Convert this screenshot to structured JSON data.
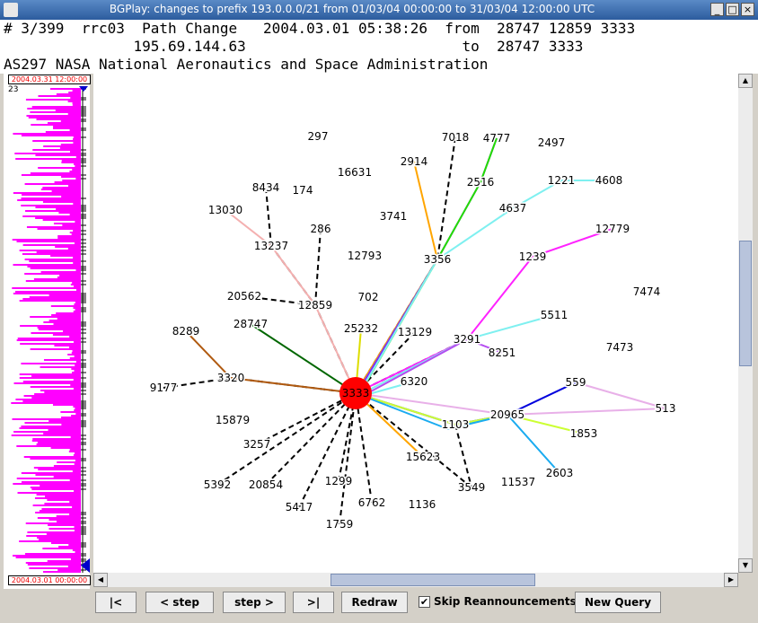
{
  "window": {
    "title": "BGPlay: changes to prefix 193.0.0.0/21 from 01/03/04 00:00:00 to 31/03/04 12:00:00 UTC",
    "minimize": "_",
    "maximize": "□",
    "close": "×"
  },
  "info": {
    "line1": "# 3/399  rrc03  Path Change   2004.03.01 05:38:26  from  28747 12859 3333",
    "line2": "               195.69.144.63                         to  28747 3333",
    "line3": "AS297 NASA National Aeronautics and Space Administration"
  },
  "timeline": {
    "top_date": "2004.03.31  12:00:00",
    "bottom_date": "2004.03.01  00:00:00",
    "count": "23",
    "event_color": "#ff00ff"
  },
  "graph": {
    "center_node": "3333",
    "center_color": "#ff0000",
    "nodes": [
      {
        "label": "297"
      },
      {
        "label": "7018"
      },
      {
        "label": "4777"
      },
      {
        "label": "2497"
      },
      {
        "label": "16631"
      },
      {
        "label": "2914"
      },
      {
        "label": "2516"
      },
      {
        "label": "1221"
      },
      {
        "label": "4608"
      },
      {
        "label": "8434"
      },
      {
        "label": "174"
      },
      {
        "label": "13030"
      },
      {
        "label": "3741"
      },
      {
        "label": "4637"
      },
      {
        "label": "286"
      },
      {
        "label": "12779"
      },
      {
        "label": "13237"
      },
      {
        "label": "12793"
      },
      {
        "label": "3356"
      },
      {
        "label": "1239"
      },
      {
        "label": "7474"
      },
      {
        "label": "20562"
      },
      {
        "label": "702"
      },
      {
        "label": "12859"
      },
      {
        "label": "5511"
      },
      {
        "label": "28747"
      },
      {
        "label": "25232"
      },
      {
        "label": "8289"
      },
      {
        "label": "13129"
      },
      {
        "label": "3291"
      },
      {
        "label": "7473"
      },
      {
        "label": "8251"
      },
      {
        "label": "3320"
      },
      {
        "label": "9177"
      },
      {
        "label": "6320"
      },
      {
        "label": "559"
      },
      {
        "label": "513"
      },
      {
        "label": "20965"
      },
      {
        "label": "15879"
      },
      {
        "label": "1103"
      },
      {
        "label": "1853"
      },
      {
        "label": "3257"
      },
      {
        "label": "15623"
      },
      {
        "label": "2603"
      },
      {
        "label": "5392"
      },
      {
        "label": "20854"
      },
      {
        "label": "1299"
      },
      {
        "label": "11537"
      },
      {
        "label": "3549"
      },
      {
        "label": "5417"
      },
      {
        "label": "6762"
      },
      {
        "label": "1136"
      },
      {
        "label": "1759"
      }
    ]
  },
  "buttons": {
    "first": "|<",
    "prev": "< step",
    "next": "step >",
    "last": ">|",
    "redraw": "Redraw",
    "skip_checked": "✔",
    "skip_label": "Skip Reannouncements",
    "new_query": "New Query"
  },
  "scroll": {
    "up": "▲",
    "down": "▼",
    "left": "◀",
    "right": "▶"
  }
}
